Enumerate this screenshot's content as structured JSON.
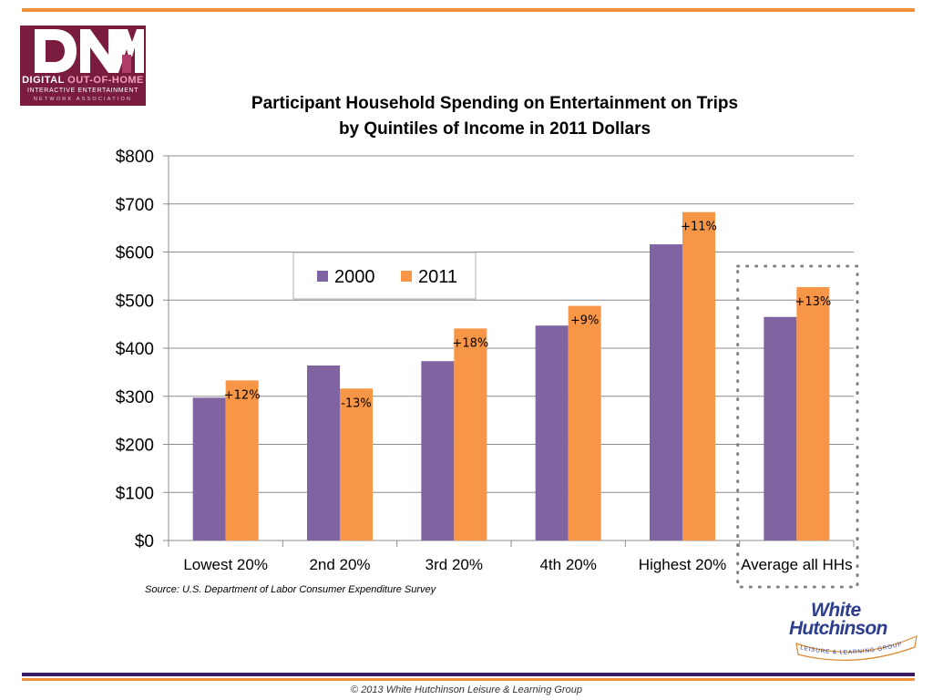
{
  "header": {
    "logo_line1_a": "DIGITAL",
    "logo_line1_b": "OUT-OF-HOME",
    "logo_line2": "INTERACTIVE ENTERTAINMENT",
    "logo_line3": "NETWORK ASSOCIATION"
  },
  "colors": {
    "accent_orange": "#f0923a",
    "accent_purple": "#3b1c64",
    "series_2000": "#8064a2",
    "series_2011": "#f79646",
    "logo_maroon": "#7a1c3f"
  },
  "chart_data": {
    "type": "bar",
    "title": [
      "Participant Household Spending on Entertainment on Trips",
      "by Quintiles of Income in 2011 Dollars"
    ],
    "categories": [
      "Lowest 20%",
      "2nd 20%",
      "3rd 20%",
      "4th 20%",
      "Highest 20%",
      "Average all HHs"
    ],
    "series": [
      {
        "name": "2000",
        "color": "#8064a2",
        "values": [
          297,
          364,
          373,
          447,
          616,
          465
        ]
      },
      {
        "name": "2011",
        "color": "#f79646",
        "values": [
          333,
          316,
          441,
          488,
          683,
          527
        ]
      }
    ],
    "data_labels": [
      "+12%",
      "-13%",
      "+18%",
      "+9%",
      "+11%",
      "+13%"
    ],
    "ylim": [
      0,
      800
    ],
    "yticks": [
      0,
      100,
      200,
      300,
      400,
      500,
      600,
      700,
      800
    ],
    "ytick_labels": [
      "$0",
      "$100",
      "$200",
      "$300",
      "$400",
      "$500",
      "$600",
      "$700",
      "$800"
    ],
    "xlabel": "",
    "ylabel": "",
    "grid": true,
    "legend_position": "upper-left inside plot",
    "highlight": "Average all HHs (dotted box)",
    "source": "Source: U.S. Department of Labor Consumer Expenditure Survey"
  },
  "branding": {
    "wh_line1": "White",
    "wh_line2": "Hutchinson",
    "wh_tagline": "LEISURE & LEARNING GROUP"
  },
  "footer": {
    "copyright": "© 2013 White Hutchinson Leisure & Learning Group"
  }
}
